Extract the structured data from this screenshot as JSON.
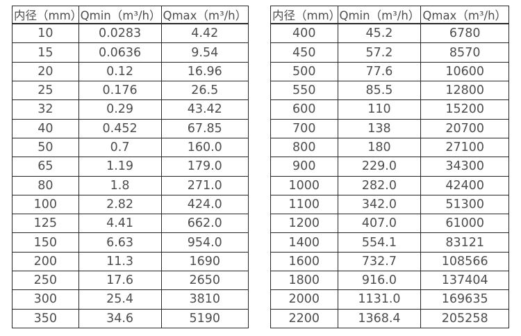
{
  "page": {
    "background_color": "#ffffff",
    "border_color": "#262626",
    "text_color": "#4d4d4d"
  },
  "tables": [
    {
      "name": "flow-table-dn10-350",
      "headers": [
        "内径（mm）",
        "Qmin（m³/h）",
        "Qmax（m³/h）"
      ],
      "rows": [
        [
          "10",
          "0.0283",
          "4.42"
        ],
        [
          "15",
          "0.0636",
          "9.54"
        ],
        [
          "20",
          "0.12",
          "16.96"
        ],
        [
          "25",
          "0.176",
          "26.5"
        ],
        [
          "32",
          "0.29",
          "43.42"
        ],
        [
          "40",
          "0.452",
          "67.85"
        ],
        [
          "50",
          "0.7",
          "160.0"
        ],
        [
          "65",
          "1.19",
          "179.0"
        ],
        [
          "80",
          "1.8",
          "271.0"
        ],
        [
          "100",
          "2.82",
          "424.0"
        ],
        [
          "125",
          "4.41",
          "662.0"
        ],
        [
          "150",
          "6.63",
          "954.0"
        ],
        [
          "200",
          "11.3",
          "1690"
        ],
        [
          "250",
          "17.6",
          "2650"
        ],
        [
          "300",
          "25.4",
          "3810"
        ],
        [
          "350",
          "34.6",
          "5190"
        ]
      ]
    },
    {
      "name": "flow-table-dn400-2200",
      "headers": [
        "内径（mm）",
        "Qmin（m³/h）",
        "Qmax（m³/h）"
      ],
      "rows": [
        [
          "400",
          "45.2",
          "6780"
        ],
        [
          "450",
          "57.2",
          "8570"
        ],
        [
          "500",
          "77.6",
          "10600"
        ],
        [
          "550",
          "85.5",
          "12800"
        ],
        [
          "600",
          "110",
          "15200"
        ],
        [
          "700",
          "138",
          "20700"
        ],
        [
          "800",
          "180",
          "27100"
        ],
        [
          "900",
          "229.0",
          "34300"
        ],
        [
          "1000",
          "282.0",
          "42400"
        ],
        [
          "1100",
          "342.0",
          "51300"
        ],
        [
          "1200",
          "407.0",
          "61000"
        ],
        [
          "1400",
          "554.1",
          "83121"
        ],
        [
          "1600",
          "732.7",
          "108566"
        ],
        [
          "1800",
          "916.0",
          "137404"
        ],
        [
          "2000",
          "1131.0",
          "169635"
        ],
        [
          "2200",
          "1368.4",
          "205258"
        ]
      ]
    }
  ]
}
